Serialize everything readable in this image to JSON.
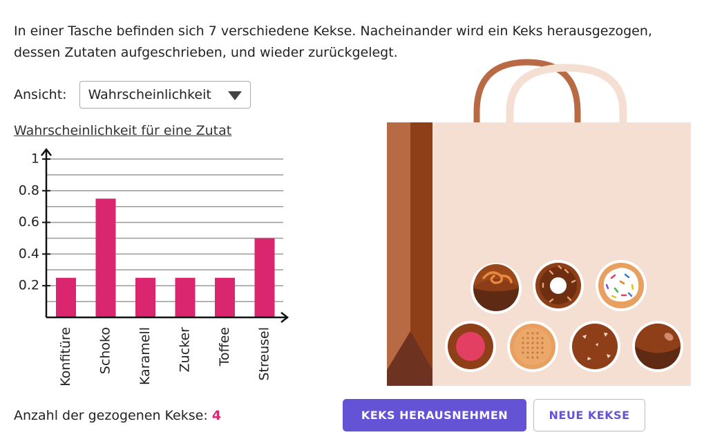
{
  "intro": "In einer Tasche befinden sich 7 verschiedene Kekse. Nacheinander wird ein Keks herausgezogen, dessen Zutaten aufgeschrieben, und wieder zurückgelegt.",
  "view": {
    "label": "Ansicht:",
    "selected": "Wahrscheinlichkeit"
  },
  "chart_title": "Wahrscheinlichkeit für eine Zutat",
  "chart_data": {
    "type": "bar",
    "title": "Wahrscheinlichkeit für eine Zutat",
    "xlabel": "",
    "ylabel": "",
    "categories": [
      "Konfitüre",
      "Schoko",
      "Karamell",
      "Zucker",
      "Toffee",
      "Streusel"
    ],
    "values": [
      0.25,
      0.75,
      0.25,
      0.25,
      0.25,
      0.5
    ],
    "ylim": [
      0,
      1
    ],
    "yticks": [
      0.2,
      0.4,
      0.6,
      0.8,
      1
    ],
    "ytick_labels": [
      "0.2",
      "0.4",
      "0.6",
      "0.8",
      "1"
    ],
    "grid_step": 0.1,
    "bar_color": "#d9266e"
  },
  "count": {
    "label": "Anzahl der gezogenen Kekse:",
    "value": "4"
  },
  "buttons": {
    "draw": "KEKS HERAUSNEHMEN",
    "new": "NEUE KEKSE"
  },
  "colors": {
    "accent": "#6553d6",
    "highlight": "#d9266e"
  },
  "cookies": [
    "caramel-swirl-cookie-icon",
    "glazed-donut-cookie-icon",
    "sprinkle-donut-cookie-icon",
    "jam-filled-cookie-icon",
    "sugar-biscuit-cookie-icon",
    "toffee-chunk-cookie-icon",
    "chocolate-ball-cookie-icon"
  ]
}
